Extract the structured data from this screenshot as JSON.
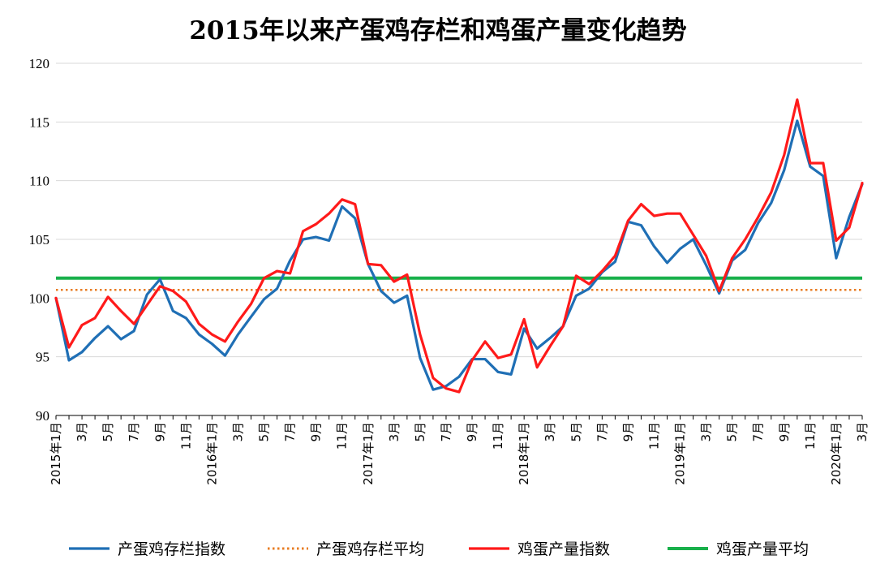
{
  "chart_data": {
    "type": "line",
    "title": "2015年以来产蛋鸡存栏和鸡蛋产量变化趋势",
    "ylim": [
      90,
      120
    ],
    "yticks": [
      "90",
      "95",
      "100",
      "105",
      "110",
      "115",
      "120"
    ],
    "grid": true,
    "legend_position": "bottom",
    "x_labels": [
      "2015年1月",
      "3月",
      "5月",
      "7月",
      "9月",
      "11月",
      "2016年1月",
      "3月",
      "5月",
      "7月",
      "9月",
      "11月",
      "2017年1月",
      "3月",
      "5月",
      "7月",
      "9月",
      "11月",
      "2018年1月",
      "3月",
      "5月",
      "7月",
      "9月",
      "11月",
      "2019年1月",
      "3月",
      "5月",
      "7月",
      "9月",
      "11月",
      "2020年1月",
      "3月"
    ],
    "series": [
      {
        "name": "产蛋鸡存栏指数",
        "color": "#1f6fb5",
        "style": "solid",
        "values": [
          100.0,
          94.7,
          95.4,
          96.6,
          97.6,
          96.5,
          97.2,
          100.3,
          101.6,
          98.9,
          98.3,
          96.9,
          96.1,
          95.1,
          96.9,
          98.4,
          99.9,
          100.8,
          103.2,
          105.0,
          105.2,
          104.9,
          107.8,
          106.8,
          102.9,
          100.6,
          99.6,
          100.2,
          94.9,
          92.2,
          92.5,
          93.3,
          94.8,
          94.8,
          93.7,
          93.5,
          97.4,
          95.7,
          96.6,
          97.6,
          100.2,
          100.8,
          102.2,
          103.1,
          106.5,
          106.2,
          104.4,
          103.0,
          104.2,
          105.0,
          102.8,
          100.4,
          103.2,
          104.1,
          106.4,
          108.1,
          110.9,
          115.1,
          111.2,
          110.4,
          103.4,
          106.9,
          109.7
        ]
      },
      {
        "name": "产蛋鸡存栏平均",
        "color": "#e87c23",
        "style": "dotted",
        "values": [
          100.7
        ]
      },
      {
        "name": "鸡蛋产量指数",
        "color": "#ff1a1a",
        "style": "solid",
        "values": [
          100.0,
          95.8,
          97.7,
          98.3,
          100.1,
          98.9,
          97.8,
          99.4,
          101.0,
          100.6,
          99.7,
          97.8,
          96.9,
          96.3,
          98.0,
          99.5,
          101.7,
          102.3,
          102.1,
          105.7,
          106.3,
          107.2,
          108.4,
          108.0,
          102.9,
          102.8,
          101.4,
          102.0,
          96.9,
          93.2,
          92.3,
          92.0,
          94.7,
          96.3,
          94.9,
          95.2,
          98.2,
          94.1,
          95.9,
          97.6,
          101.9,
          101.2,
          102.3,
          103.6,
          106.6,
          108.0,
          107.0,
          107.2,
          107.2,
          105.4,
          103.6,
          100.6,
          103.4,
          105.0,
          106.9,
          109.0,
          112.2,
          116.9,
          111.5,
          111.5,
          104.9,
          106.0,
          109.8
        ]
      },
      {
        "name": "鸡蛋产量平均",
        "color": "#19b04b",
        "style": "solid-thick",
        "values": [
          101.7
        ]
      }
    ]
  }
}
